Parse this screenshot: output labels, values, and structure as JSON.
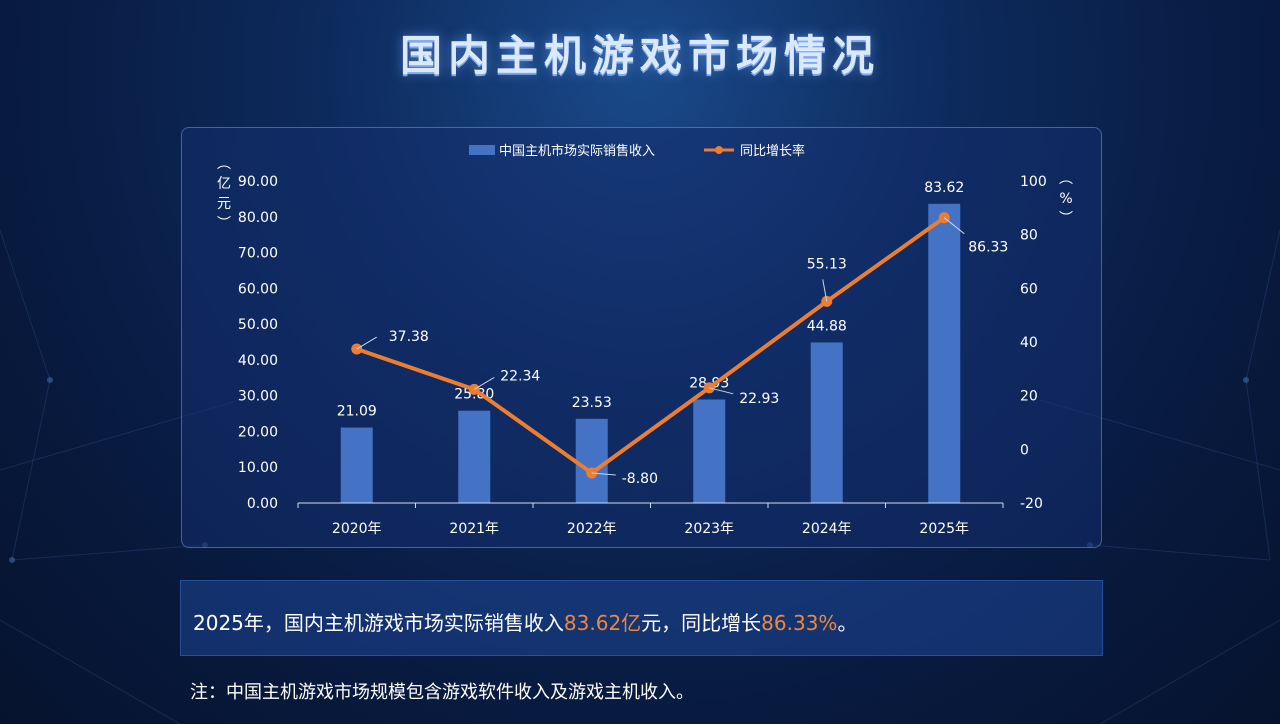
{
  "page": {
    "title": "国内主机游戏市场情况"
  },
  "summary": {
    "part1": "2025年，国内主机游戏市场实际销售收入",
    "revenue": "83.62亿",
    "part2": "元，同比增长",
    "growth": "86.33%",
    "part3": "。"
  },
  "footnote": "注：中国主机游戏市场规模包含游戏软件收入及游戏主机收入。",
  "colors": {
    "bar": "#4472c4",
    "line": "#ed7d31",
    "highlight": "#f0873a"
  },
  "chart_data": {
    "type": "bar",
    "categories": [
      "2020年",
      "2021年",
      "2022年",
      "2023年",
      "2024年",
      "2025年"
    ],
    "series": [
      {
        "name": "中国主机市场实际销售收入",
        "type": "bar",
        "axis": "left",
        "values": [
          21.09,
          25.8,
          23.53,
          28.93,
          44.88,
          83.62
        ],
        "labels": [
          "21.09",
          "25.80",
          "23.53",
          "28.93",
          "44.88",
          "83.62"
        ]
      },
      {
        "name": "同比增长率",
        "type": "line",
        "axis": "right",
        "values": [
          37.38,
          22.34,
          -8.8,
          22.93,
          55.13,
          86.33
        ],
        "labels": [
          "37.38",
          "22.34",
          "-8.80",
          "22.93",
          "55.13",
          "86.33"
        ]
      }
    ],
    "y_left": {
      "label": "（亿元）",
      "label_chars": [
        "︵",
        "亿",
        "元",
        "︶"
      ],
      "ylim": [
        0,
        90
      ],
      "ticks": [
        "0.00",
        "10.00",
        "20.00",
        "30.00",
        "40.00",
        "50.00",
        "60.00",
        "70.00",
        "80.00",
        "90.00"
      ]
    },
    "y_right": {
      "label": "（%）",
      "label_chars": [
        "︵",
        "%",
        "︶"
      ],
      "ylim": [
        -20,
        100
      ],
      "ticks": [
        "-20",
        "0",
        "20",
        "40",
        "60",
        "80",
        "100"
      ]
    },
    "legend_position": "top-center",
    "grid": false
  }
}
